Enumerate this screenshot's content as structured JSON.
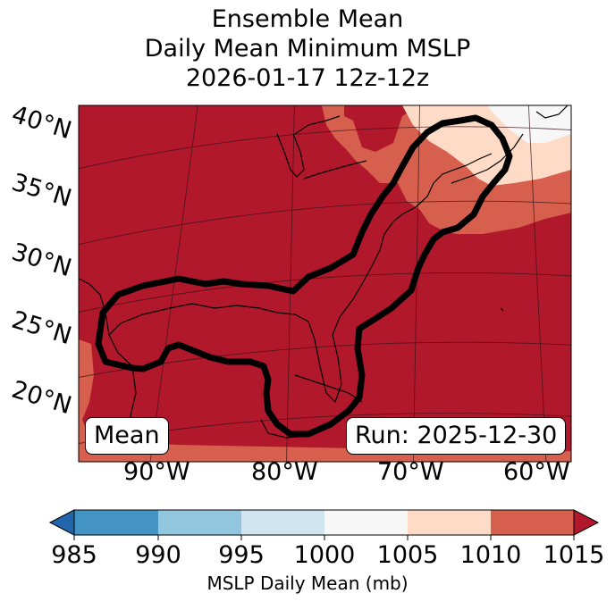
{
  "title": {
    "line1": "Ensemble Mean",
    "line2": "Daily Mean Minimum MSLP",
    "line3": "2026-01-17 12z-12z"
  },
  "map": {
    "lat_labels": [
      "40°N",
      "35°N",
      "30°N",
      "25°N",
      "20°N"
    ],
    "lon_labels": [
      "90°W",
      "80°W",
      "70°W",
      "60°W"
    ],
    "mean_label": "Mean",
    "run_label": "Run: 2025-12-30",
    "colors": {
      "dominant": "#b2182b",
      "c1005_1010": "#fddbc7",
      "c1010_1015": "#d6604d",
      "c1000_1005": "#f7f7f7",
      "contour": "#000000"
    }
  },
  "colorbar": {
    "ticks": [
      "985",
      "990",
      "995",
      "1000",
      "1005",
      "1010",
      "1015"
    ],
    "label": "MSLP Daily Mean (mb)",
    "colors": [
      "#2166ac",
      "#4393c3",
      "#92c5de",
      "#d1e5f0",
      "#f7f7f7",
      "#fddbc7",
      "#d6604d",
      "#b2182b"
    ]
  }
}
